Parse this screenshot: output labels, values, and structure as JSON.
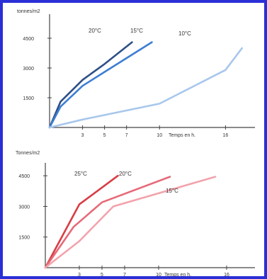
{
  "chart_data": [
    {
      "type": "line",
      "ylabel": "tonnes/m2",
      "xlabel": "Temps en h.",
      "y_ticks": [
        "4500",
        "3000",
        "1500"
      ],
      "x_ticks": [
        "3",
        "5",
        "7",
        "10",
        "16"
      ],
      "x_tick_values": [
        3,
        5,
        7,
        10,
        16
      ],
      "y_tick_values": [
        4500,
        3000,
        1500
      ],
      "xlim": [
        0,
        19
      ],
      "ylim": [
        0,
        5000
      ],
      "series": [
        {
          "name": "20°C",
          "color": "#2e4f86",
          "x": [
            0,
            1,
            3,
            5,
            7.5
          ],
          "y": [
            0,
            1300,
            2400,
            3200,
            4300
          ]
        },
        {
          "name": "15°C",
          "color": "#3d7ed3",
          "x": [
            0,
            1,
            3,
            5,
            9.3
          ],
          "y": [
            0,
            1050,
            2100,
            2800,
            4300
          ]
        },
        {
          "name": "10°C",
          "color": "#a8c7ec",
          "x": [
            0,
            3,
            10,
            16,
            17.5
          ],
          "y": [
            0,
            400,
            1200,
            2900,
            4000
          ]
        }
      ]
    },
    {
      "type": "line",
      "ylabel": "Tonnes/m2",
      "xlabel": "Temps en h.",
      "y_ticks": [
        "4500",
        "3000",
        "1500"
      ],
      "x_ticks": [
        "3",
        "5",
        "7",
        "10",
        "16"
      ],
      "x_tick_values": [
        3,
        5,
        7,
        10,
        16
      ],
      "y_tick_values": [
        4500,
        3000,
        1500
      ],
      "xlim": [
        0,
        18.5
      ],
      "ylim": [
        0,
        5200
      ],
      "series": [
        {
          "name": "25°C",
          "color": "#d83d44",
          "x": [
            0,
            3,
            6.4
          ],
          "y": [
            0,
            3100,
            4500
          ]
        },
        {
          "name": "20°C",
          "color": "#e66a78",
          "x": [
            0,
            2.5,
            5,
            11
          ],
          "y": [
            0,
            2000,
            3200,
            4450
          ]
        },
        {
          "name": "15°C",
          "color": "#f2a3ac",
          "x": [
            0,
            3,
            6,
            15
          ],
          "y": [
            0,
            1300,
            3000,
            4450
          ]
        }
      ]
    }
  ]
}
